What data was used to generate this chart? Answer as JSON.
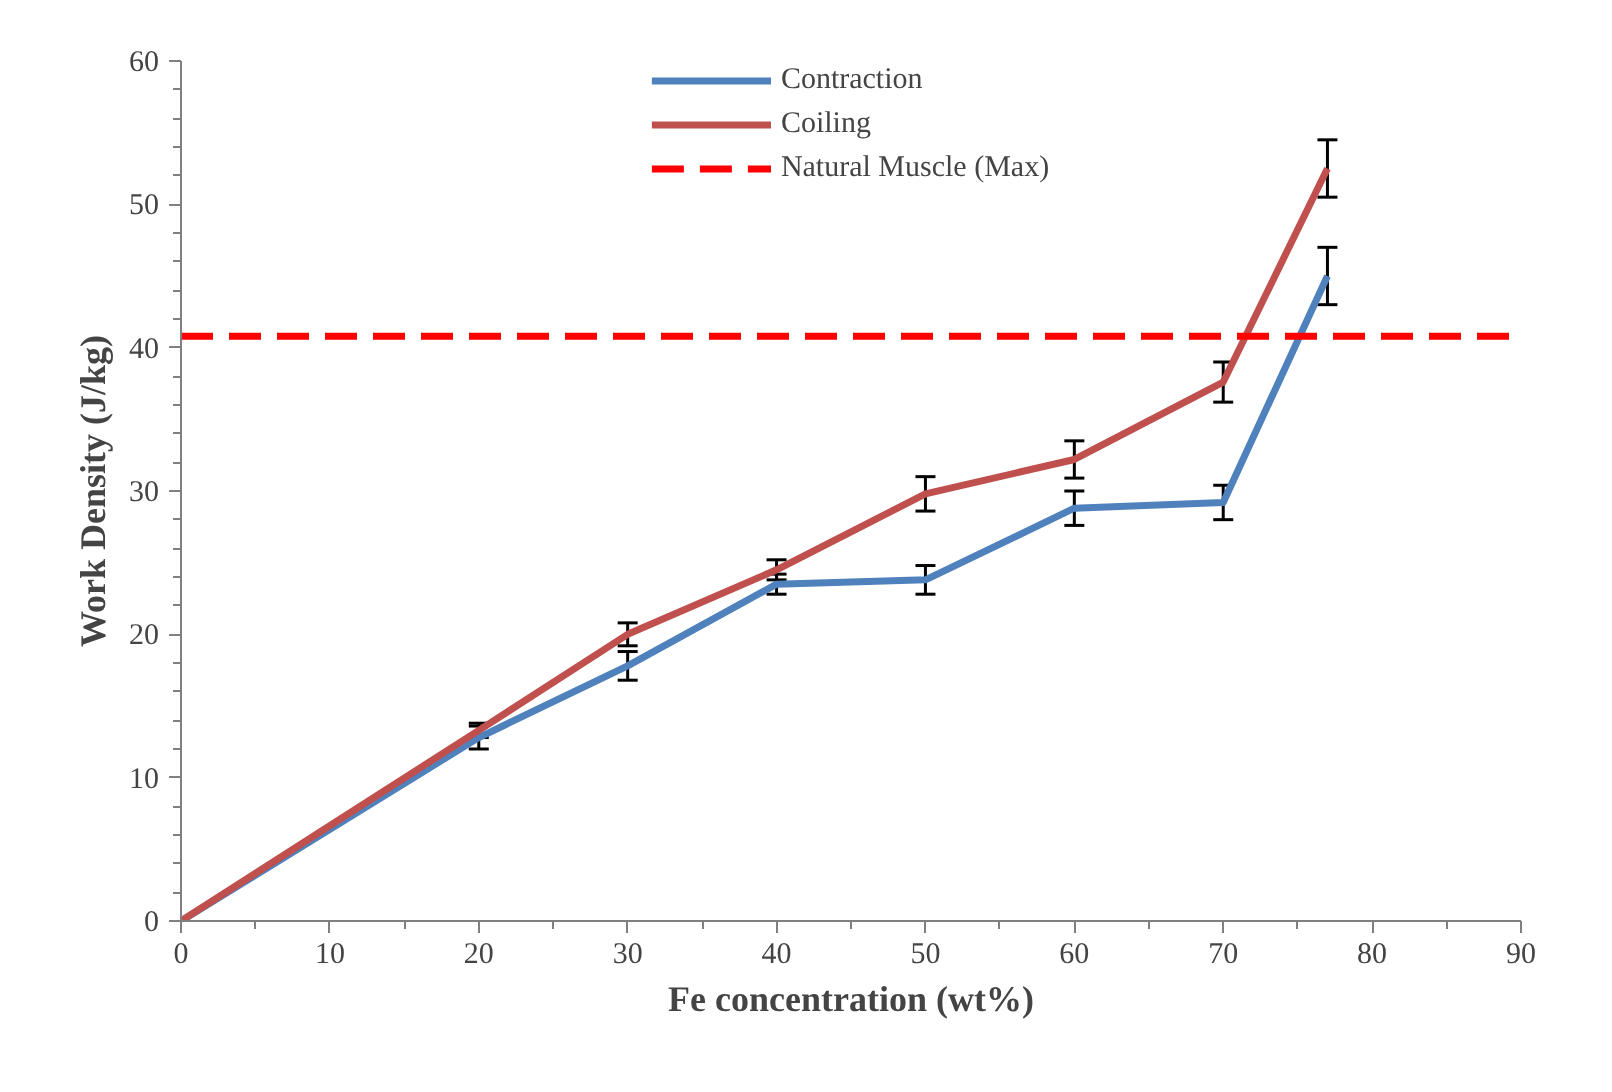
{
  "chart_data": {
    "type": "line",
    "xlabel": "Fe concentration (wt%)",
    "ylabel": "Work Density (J/kg)",
    "x": [
      0,
      20,
      30,
      40,
      50,
      60,
      70,
      77
    ],
    "series": [
      {
        "name": "Contraction",
        "color": "#4f81bd",
        "values": [
          0,
          12.8,
          17.8,
          23.5,
          23.8,
          28.8,
          29.2,
          45.0
        ],
        "errors": [
          null,
          0.8,
          1.0,
          0.7,
          1.0,
          1.2,
          1.2,
          2.0
        ]
      },
      {
        "name": "Coiling",
        "color": "#c0504d",
        "values": [
          0,
          13.3,
          20.0,
          24.5,
          29.8,
          32.2,
          37.6,
          52.5
        ],
        "errors": [
          null,
          0.5,
          0.8,
          0.7,
          1.2,
          1.3,
          1.4,
          2.0
        ]
      }
    ],
    "ref_lines": [
      {
        "axis": "y",
        "value": 40.8,
        "label": "Natural Muscle (Max)",
        "color": "#ff0000",
        "line_style": "dashed"
      }
    ],
    "xlim": [
      0,
      90
    ],
    "xticks": [
      0,
      10,
      20,
      30,
      40,
      50,
      60,
      70,
      80,
      90
    ],
    "ylim": [
      0,
      60
    ],
    "yticks": [
      0,
      10,
      20,
      30,
      40,
      50,
      60
    ],
    "grid": false,
    "legend": "top",
    "marker": "none",
    "line_style": "solid"
  }
}
